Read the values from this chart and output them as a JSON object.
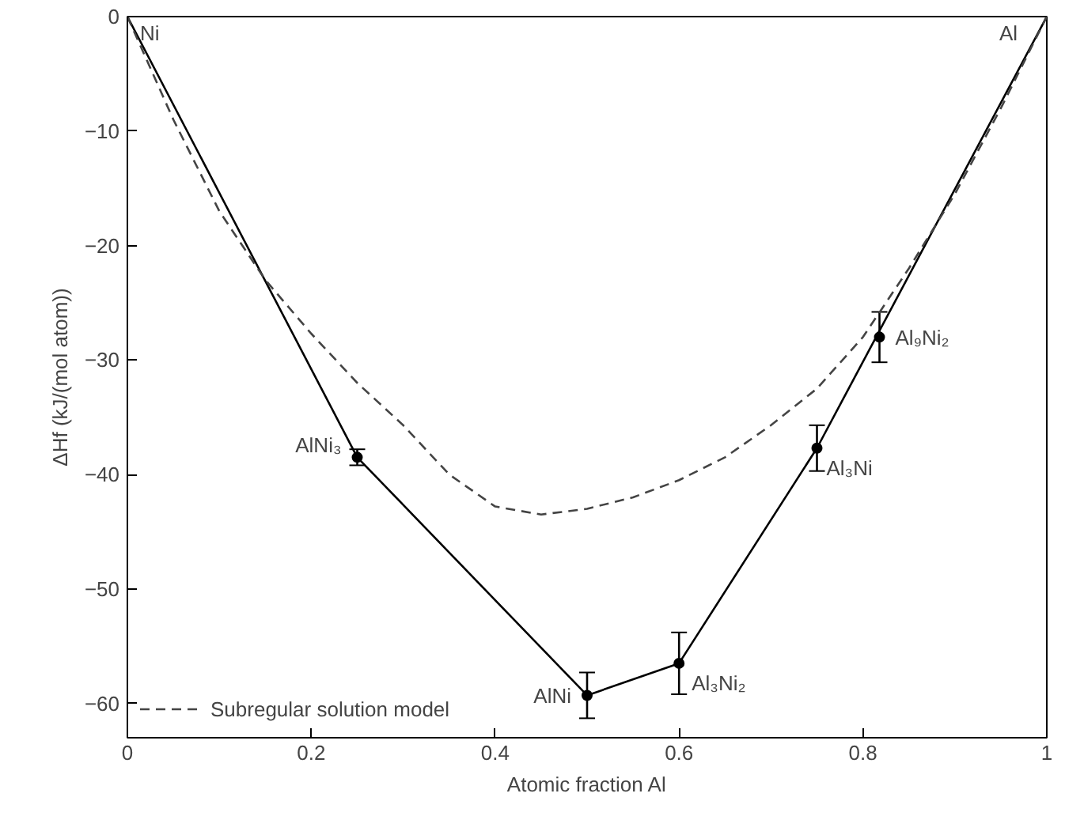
{
  "chart_data": {
    "type": "line",
    "xlabel": "Atomic fraction Al",
    "ylabel": "ΔHf (kJ/(mol atom))",
    "xlim": [
      0,
      1
    ],
    "ylim": [
      -63,
      0
    ],
    "xticks": [
      0,
      0.2,
      0.4,
      0.6,
      0.8,
      1
    ],
    "yticks": [
      0,
      -10,
      -20,
      -30,
      -40,
      -50,
      -60
    ],
    "grid": false,
    "legend": "bottom left",
    "series": [
      {
        "color": "#000000",
        "line_style": "solid",
        "marker": "none",
        "x": [
          0,
          0.25,
          0.5,
          0.6,
          0.75,
          1
        ],
        "values": [
          0,
          -38.5,
          -59.3,
          -56.5,
          -37.7,
          0
        ]
      },
      {
        "name": "Subregular solution model",
        "color": "#444444",
        "line_style": "dashed",
        "marker": "none",
        "x": [
          0,
          0.05,
          0.1,
          0.15,
          0.2,
          0.25,
          0.3,
          0.35,
          0.4,
          0.45,
          0.5,
          0.55,
          0.6,
          0.65,
          0.7,
          0.75,
          0.8,
          0.85,
          0.9,
          0.95,
          1
        ],
        "values": [
          0,
          -9,
          -17,
          -23,
          -27.7,
          -32,
          -35.7,
          -40,
          -42.8,
          -43.5,
          -43,
          -42,
          -40.5,
          -38.5,
          -35.7,
          -32.5,
          -28,
          -22,
          -15.5,
          -8,
          0
        ]
      },
      {
        "type": "scatter",
        "color": "#000000",
        "marker": "circle",
        "x": [
          0.25,
          0.5,
          0.6,
          0.75,
          0.818
        ],
        "values": [
          -38.5,
          -59.3,
          -56.5,
          -37.7,
          -28
        ],
        "errors": [
          0.7,
          2,
          2.7,
          2,
          2.2
        ]
      }
    ],
    "annotations": [
      {
        "text": "Ni",
        "x": 0,
        "y": 0
      },
      {
        "text": "Al",
        "x": 1,
        "y": 0
      },
      {
        "text": "AlNi₃",
        "x": 0.25,
        "y": -38.5
      },
      {
        "text": "AlNi",
        "x": 0.5,
        "y": -59.3
      },
      {
        "text": "Al₃Ni₂",
        "x": 0.6,
        "y": -56.5
      },
      {
        "text": "Al₃Ni",
        "x": 0.75,
        "y": -37.7
      },
      {
        "text": "Al₉Ni₂",
        "x": 0.818,
        "y": -28
      }
    ]
  }
}
